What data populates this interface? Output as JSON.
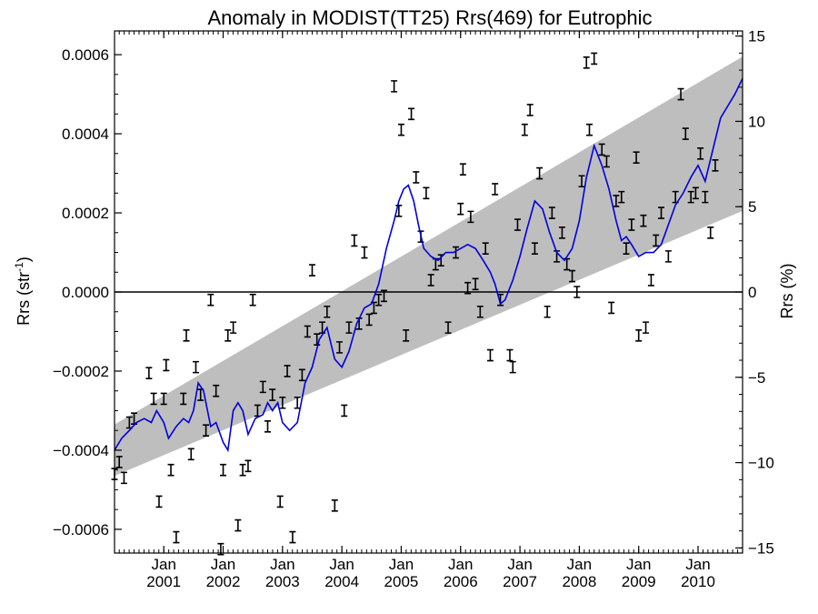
{
  "chart_data": {
    "type": "scatter",
    "title": "Anomaly in MODIST(TT25) Rrs(469) for Eutrophic",
    "ylabel_left_base": "Rrs (str",
    "ylabel_left_sup": "-1",
    "ylabel_left_end": ")",
    "ylabel_right": "Rrs (%)",
    "xlim": [
      2000.17,
      2010.75
    ],
    "ylim_left": [
      -0.00066,
      0.00066
    ],
    "ylim_right": [
      -15.3,
      15.3
    ],
    "left_ticks": [
      {
        "value": 0.0006,
        "label": "0.0006"
      },
      {
        "value": 0.0004,
        "label": "0.0004"
      },
      {
        "value": 0.0002,
        "label": "0.0002"
      },
      {
        "value": 0.0,
        "label": "0.0000"
      },
      {
        "value": -0.0002,
        "label": "−0.0002"
      },
      {
        "value": -0.0004,
        "label": "−0.0004"
      },
      {
        "value": -0.0006,
        "label": "−0.0006"
      }
    ],
    "right_ticks": [
      {
        "value": 15,
        "label": "15"
      },
      {
        "value": 10,
        "label": "10"
      },
      {
        "value": 5,
        "label": "5"
      },
      {
        "value": 0,
        "label": "0"
      },
      {
        "value": -5,
        "label": "−5"
      },
      {
        "value": -10,
        "label": "−10"
      },
      {
        "value": -15,
        "label": "−15"
      }
    ],
    "x_ticks": [
      {
        "value": 2001.0,
        "month": "Jan",
        "year": "2001"
      },
      {
        "value": 2002.0,
        "month": "Jan",
        "year": "2002"
      },
      {
        "value": 2003.0,
        "month": "Jan",
        "year": "2003"
      },
      {
        "value": 2004.0,
        "month": "Jan",
        "year": "2004"
      },
      {
        "value": 2005.0,
        "month": "Jan",
        "year": "2005"
      },
      {
        "value": 2006.0,
        "month": "Jan",
        "year": "2006"
      },
      {
        "value": 2007.0,
        "month": "Jan",
        "year": "2007"
      },
      {
        "value": 2008.0,
        "month": "Jan",
        "year": "2008"
      },
      {
        "value": 2009.0,
        "month": "Jan",
        "year": "2009"
      },
      {
        "value": 2010.0,
        "month": "Jan",
        "year": "2010"
      }
    ],
    "band": {
      "start": {
        "x": 2000.17,
        "low": -0.000465,
        "high": -0.000335
      },
      "end": {
        "x": 2010.75,
        "low": 0.000205,
        "high": 0.000595
      }
    },
    "zero_line": 0.0,
    "points": [
      {
        "x": 2000.17,
        "y": -0.00046
      },
      {
        "x": 2000.25,
        "y": -0.00043
      },
      {
        "x": 2000.33,
        "y": -0.00047
      },
      {
        "x": 2000.42,
        "y": -0.00033
      },
      {
        "x": 2000.5,
        "y": -0.00032
      },
      {
        "x": 2000.75,
        "y": -0.000205
      },
      {
        "x": 2000.83,
        "y": -0.00027
      },
      {
        "x": 2000.92,
        "y": -0.00053
      },
      {
        "x": 2001.0,
        "y": -0.00027
      },
      {
        "x": 2001.04,
        "y": -0.000185
      },
      {
        "x": 2001.12,
        "y": -0.00045
      },
      {
        "x": 2001.21,
        "y": -0.00062
      },
      {
        "x": 2001.33,
        "y": -0.00027
      },
      {
        "x": 2001.38,
        "y": -0.00011
      },
      {
        "x": 2001.46,
        "y": -0.00041
      },
      {
        "x": 2001.54,
        "y": -0.00019
      },
      {
        "x": 2001.62,
        "y": -0.00026
      },
      {
        "x": 2001.71,
        "y": -0.00035
      },
      {
        "x": 2001.79,
        "y": -2e-05
      },
      {
        "x": 2001.88,
        "y": -0.00025
      },
      {
        "x": 2001.96,
        "y": -0.00065
      },
      {
        "x": 2002.0,
        "y": -0.00045
      },
      {
        "x": 2002.08,
        "y": -0.00011
      },
      {
        "x": 2002.17,
        "y": -9e-05
      },
      {
        "x": 2002.25,
        "y": -0.00059
      },
      {
        "x": 2002.33,
        "y": -0.00045
      },
      {
        "x": 2002.42,
        "y": -0.00044
      },
      {
        "x": 2002.5,
        "y": -2e-05
      },
      {
        "x": 2002.58,
        "y": -0.0003
      },
      {
        "x": 2002.67,
        "y": -0.00024
      },
      {
        "x": 2002.75,
        "y": -0.00034
      },
      {
        "x": 2002.83,
        "y": -0.00026
      },
      {
        "x": 2002.96,
        "y": -0.00053
      },
      {
        "x": 2003.0,
        "y": -0.00028
      },
      {
        "x": 2003.08,
        "y": -0.0002
      },
      {
        "x": 2003.17,
        "y": -0.00062
      },
      {
        "x": 2003.25,
        "y": -0.00028
      },
      {
        "x": 2003.33,
        "y": -0.00021
      },
      {
        "x": 2003.42,
        "y": -0.0001
      },
      {
        "x": 2003.5,
        "y": 5.5e-05
      },
      {
        "x": 2003.58,
        "y": -0.00012
      },
      {
        "x": 2003.67,
        "y": -9e-05
      },
      {
        "x": 2003.75,
        "y": -5e-05
      },
      {
        "x": 2003.88,
        "y": -0.00054
      },
      {
        "x": 2003.96,
        "y": -0.00014
      },
      {
        "x": 2004.04,
        "y": -0.0003
      },
      {
        "x": 2004.12,
        "y": -9e-05
      },
      {
        "x": 2004.21,
        "y": 0.00013
      },
      {
        "x": 2004.29,
        "y": -8e-05
      },
      {
        "x": 2004.38,
        "y": 0.0001
      },
      {
        "x": 2004.46,
        "y": -7e-05
      },
      {
        "x": 2004.54,
        "y": -4e-05
      },
      {
        "x": 2004.62,
        "y": -2e-05
      },
      {
        "x": 2004.71,
        "y": -1e-05
      },
      {
        "x": 2004.88,
        "y": 0.00052
      },
      {
        "x": 2004.96,
        "y": 0.000205
      },
      {
        "x": 2005.0,
        "y": 0.00041
      },
      {
        "x": 2005.08,
        "y": -0.00011
      },
      {
        "x": 2005.17,
        "y": 0.00045
      },
      {
        "x": 2005.25,
        "y": 0.00029
      },
      {
        "x": 2005.33,
        "y": 0.00014
      },
      {
        "x": 2005.42,
        "y": 0.00025
      },
      {
        "x": 2005.5,
        "y": 3e-05
      },
      {
        "x": 2005.58,
        "y": 7e-05
      },
      {
        "x": 2005.67,
        "y": 8e-05
      },
      {
        "x": 2005.79,
        "y": -9e-05
      },
      {
        "x": 2005.92,
        "y": 0.0001
      },
      {
        "x": 2006.0,
        "y": 0.00021
      },
      {
        "x": 2006.04,
        "y": 0.00031
      },
      {
        "x": 2006.12,
        "y": 1e-05
      },
      {
        "x": 2006.17,
        "y": 0.00019
      },
      {
        "x": 2006.25,
        "y": 2e-05
      },
      {
        "x": 2006.33,
        "y": -5e-05
      },
      {
        "x": 2006.42,
        "y": 0.00011
      },
      {
        "x": 2006.5,
        "y": -0.00016
      },
      {
        "x": 2006.58,
        "y": 0.00026
      },
      {
        "x": 2006.67,
        "y": -2e-05
      },
      {
        "x": 2006.83,
        "y": -0.00016
      },
      {
        "x": 2006.88,
        "y": -0.00019
      },
      {
        "x": 2006.96,
        "y": 0.00017
      },
      {
        "x": 2007.08,
        "y": 0.00041
      },
      {
        "x": 2007.17,
        "y": 0.00046
      },
      {
        "x": 2007.25,
        "y": 0.00011
      },
      {
        "x": 2007.33,
        "y": 0.0003
      },
      {
        "x": 2007.46,
        "y": -5e-05
      },
      {
        "x": 2007.54,
        "y": 0.0002
      },
      {
        "x": 2007.62,
        "y": 9e-05
      },
      {
        "x": 2007.71,
        "y": 0.00015
      },
      {
        "x": 2007.79,
        "y": 7e-05
      },
      {
        "x": 2007.88,
        "y": 4e-05
      },
      {
        "x": 2007.96,
        "y": 0.0
      },
      {
        "x": 2008.04,
        "y": 0.00028
      },
      {
        "x": 2008.12,
        "y": 0.00058
      },
      {
        "x": 2008.17,
        "y": 0.00041
      },
      {
        "x": 2008.25,
        "y": 0.00059
      },
      {
        "x": 2008.38,
        "y": 0.00036
      },
      {
        "x": 2008.46,
        "y": 0.00033
      },
      {
        "x": 2008.54,
        "y": -4e-05
      },
      {
        "x": 2008.62,
        "y": 0.00023
      },
      {
        "x": 2008.71,
        "y": 0.00024
      },
      {
        "x": 2008.79,
        "y": 0.00011
      },
      {
        "x": 2008.88,
        "y": 0.00017
      },
      {
        "x": 2008.96,
        "y": 0.00034
      },
      {
        "x": 2009.0,
        "y": -0.00011
      },
      {
        "x": 2009.08,
        "y": 0.00018
      },
      {
        "x": 2009.12,
        "y": -9e-05
      },
      {
        "x": 2009.21,
        "y": 3e-05
      },
      {
        "x": 2009.29,
        "y": 0.00013
      },
      {
        "x": 2009.38,
        "y": 0.0002
      },
      {
        "x": 2009.5,
        "y": 9e-05
      },
      {
        "x": 2009.62,
        "y": 0.00024
      },
      {
        "x": 2009.71,
        "y": 0.0005
      },
      {
        "x": 2009.79,
        "y": 0.0004
      },
      {
        "x": 2009.88,
        "y": 0.00024
      },
      {
        "x": 2009.96,
        "y": 0.00025
      },
      {
        "x": 2010.04,
        "y": 0.00035
      },
      {
        "x": 2010.12,
        "y": 0.00024
      },
      {
        "x": 2010.21,
        "y": 0.00015
      },
      {
        "x": 2010.29,
        "y": 0.00032
      }
    ],
    "smooth_line": {
      "color": "#0000dd",
      "x": [
        2000.17,
        2000.29,
        2000.42,
        2000.54,
        2000.67,
        2000.79,
        2000.88,
        2001.0,
        2001.08,
        2001.21,
        2001.33,
        2001.42,
        2001.5,
        2001.58,
        2001.67,
        2001.79,
        2001.88,
        2002.0,
        2002.08,
        2002.17,
        2002.25,
        2002.33,
        2002.42,
        2002.54,
        2002.67,
        2002.75,
        2002.83,
        2002.92,
        2003.0,
        2003.12,
        2003.25,
        2003.38,
        2003.5,
        2003.62,
        2003.75,
        2003.88,
        2004.0,
        2004.12,
        2004.25,
        2004.38,
        2004.5,
        2004.62,
        2004.75,
        2004.88,
        2004.96,
        2005.04,
        2005.12,
        2005.21,
        2005.29,
        2005.38,
        2005.5,
        2005.62,
        2005.75,
        2005.88,
        2006.0,
        2006.12,
        2006.25,
        2006.38,
        2006.5,
        2006.58,
        2006.67,
        2006.75,
        2006.88,
        2007.0,
        2007.12,
        2007.25,
        2007.38,
        2007.5,
        2007.62,
        2007.75,
        2007.88,
        2008.0,
        2008.12,
        2008.25,
        2008.38,
        2008.5,
        2008.62,
        2008.71,
        2008.79,
        2008.88,
        2009.0,
        2009.12,
        2009.25,
        2009.38,
        2009.5,
        2009.62,
        2009.75,
        2009.88,
        2010.0,
        2010.12,
        2010.25,
        2010.38,
        2010.5,
        2010.62,
        2010.75
      ],
      "y": [
        -0.0004,
        -0.00037,
        -0.00035,
        -0.00033,
        -0.00032,
        -0.00033,
        -0.0003,
        -0.00033,
        -0.00037,
        -0.00034,
        -0.00032,
        -0.00033,
        -0.0003,
        -0.00023,
        -0.00025,
        -0.00034,
        -0.00033,
        -0.00038,
        -0.0004,
        -0.0003,
        -0.00028,
        -0.0003,
        -0.00036,
        -0.00032,
        -0.00031,
        -0.00028,
        -0.0003,
        -0.00028,
        -0.00033,
        -0.00035,
        -0.00033,
        -0.00023,
        -0.00019,
        -0.00012,
        -9e-05,
        -0.00017,
        -0.00019,
        -0.00015,
        -8e-05,
        -4e-05,
        -3e-05,
        2e-05,
        0.00011,
        0.00018,
        0.00023,
        0.00026,
        0.00027,
        0.00023,
        0.00017,
        0.00011,
        9e-05,
        8e-05,
        0.0001,
        0.0001,
        0.00011,
        0.00012,
        0.00011,
        8e-05,
        5e-05,
        2e-05,
        -3e-05,
        -2e-05,
        3e-05,
        9e-05,
        0.00016,
        0.00023,
        0.00021,
        0.00015,
        0.0001,
        8e-05,
        0.00011,
        0.00018,
        0.00029,
        0.00037,
        0.00032,
        0.00026,
        0.00018,
        0.00013,
        0.00014,
        0.00012,
        9e-05,
        0.0001,
        0.0001,
        0.00012,
        0.00017,
        0.00022,
        0.00025,
        0.00029,
        0.00032,
        0.00028,
        0.00036,
        0.00044,
        0.00047,
        0.0005,
        0.00054
      ]
    }
  }
}
